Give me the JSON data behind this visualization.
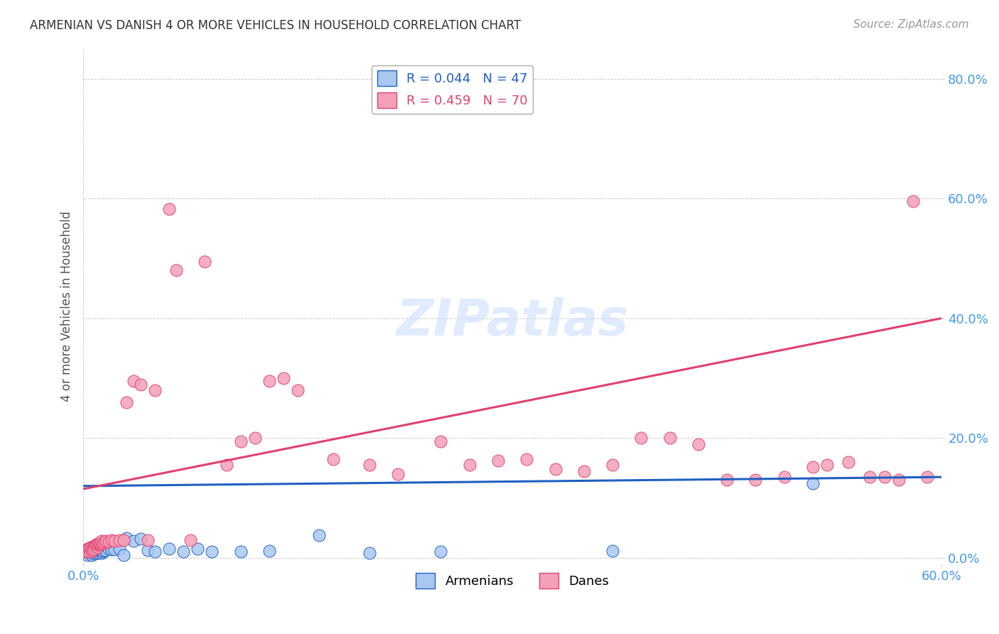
{
  "title": "ARMENIAN VS DANISH 4 OR MORE VEHICLES IN HOUSEHOLD CORRELATION CHART",
  "source": "Source: ZipAtlas.com",
  "ylabel": "4 or more Vehicles in Household",
  "legend_label1": "Armenians",
  "legend_label2": "Danes",
  "r1": "0.044",
  "n1": "47",
  "r2": "0.459",
  "n2": "70",
  "color_armenian": "#A8C8F0",
  "color_dane": "#F4A0B8",
  "color_line_armenian": "#2060C0",
  "color_line_dane": "#E04070",
  "xlim": [
    0.0,
    0.6
  ],
  "ylim": [
    -0.01,
    0.85
  ],
  "x_ticks": [
    0.0,
    0.6
  ],
  "y_ticks": [
    0.0,
    0.2,
    0.4,
    0.6,
    0.8
  ],
  "armenian_x": [
    0.001,
    0.002,
    0.003,
    0.003,
    0.004,
    0.005,
    0.005,
    0.006,
    0.006,
    0.007,
    0.007,
    0.008,
    0.008,
    0.009,
    0.009,
    0.01,
    0.01,
    0.011,
    0.011,
    0.012,
    0.012,
    0.013,
    0.013,
    0.014,
    0.015,
    0.016,
    0.018,
    0.02,
    0.022,
    0.025,
    0.028,
    0.03,
    0.035,
    0.04,
    0.045,
    0.05,
    0.06,
    0.07,
    0.08,
    0.09,
    0.11,
    0.13,
    0.165,
    0.2,
    0.25,
    0.37,
    0.51
  ],
  "armenian_y": [
    0.01,
    0.008,
    0.012,
    0.005,
    0.01,
    0.008,
    0.012,
    0.005,
    0.01,
    0.01,
    0.008,
    0.007,
    0.012,
    0.01,
    0.008,
    0.01,
    0.012,
    0.01,
    0.008,
    0.01,
    0.013,
    0.008,
    0.012,
    0.01,
    0.012,
    0.013,
    0.015,
    0.014,
    0.014,
    0.015,
    0.005,
    0.033,
    0.028,
    0.032,
    0.013,
    0.01,
    0.015,
    0.01,
    0.015,
    0.01,
    0.01,
    0.012,
    0.038,
    0.008,
    0.01,
    0.012,
    0.125
  ],
  "dane_x": [
    0.001,
    0.002,
    0.003,
    0.003,
    0.004,
    0.005,
    0.005,
    0.006,
    0.006,
    0.007,
    0.007,
    0.008,
    0.008,
    0.009,
    0.009,
    0.01,
    0.01,
    0.011,
    0.011,
    0.012,
    0.012,
    0.013,
    0.013,
    0.014,
    0.015,
    0.016,
    0.018,
    0.02,
    0.022,
    0.025,
    0.028,
    0.03,
    0.035,
    0.04,
    0.045,
    0.05,
    0.06,
    0.065,
    0.075,
    0.085,
    0.1,
    0.11,
    0.12,
    0.13,
    0.14,
    0.15,
    0.175,
    0.2,
    0.22,
    0.25,
    0.27,
    0.29,
    0.31,
    0.33,
    0.35,
    0.37,
    0.39,
    0.41,
    0.43,
    0.45,
    0.47,
    0.49,
    0.51,
    0.52,
    0.535,
    0.55,
    0.56,
    0.57,
    0.58,
    0.59
  ],
  "dane_y": [
    0.01,
    0.012,
    0.015,
    0.01,
    0.015,
    0.01,
    0.018,
    0.013,
    0.018,
    0.018,
    0.013,
    0.02,
    0.015,
    0.022,
    0.02,
    0.018,
    0.023,
    0.022,
    0.025,
    0.022,
    0.025,
    0.025,
    0.028,
    0.025,
    0.027,
    0.028,
    0.027,
    0.03,
    0.028,
    0.03,
    0.03,
    0.26,
    0.295,
    0.29,
    0.03,
    0.28,
    0.582,
    0.48,
    0.03,
    0.495,
    0.155,
    0.195,
    0.2,
    0.295,
    0.3,
    0.28,
    0.165,
    0.155,
    0.14,
    0.195,
    0.155,
    0.162,
    0.165,
    0.148,
    0.145,
    0.155,
    0.2,
    0.2,
    0.19,
    0.13,
    0.13,
    0.135,
    0.152,
    0.155,
    0.16,
    0.135,
    0.135,
    0.13,
    0.595,
    0.135
  ]
}
